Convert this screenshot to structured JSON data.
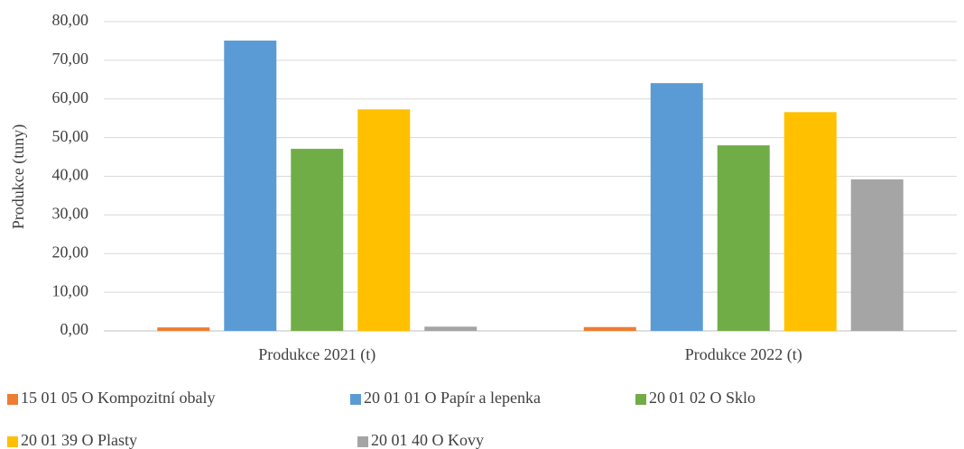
{
  "chart_data": {
    "type": "bar",
    "y_label": "Produkce (tuny)",
    "categories": [
      "Produkce 2021 (t)",
      "Produkce 2022 (t)"
    ],
    "series": [
      {
        "name": "15 01 05 O Kompozitní obaly",
        "color": "#ed7d31",
        "values": [
          0.9,
          1.0
        ]
      },
      {
        "name": "20 01 01 O Papír a lepenka",
        "color": "#5b9bd5",
        "values": [
          75.1,
          64.1
        ]
      },
      {
        "name": "20 01 02 O Sklo",
        "color": "#70ad47",
        "values": [
          47.1,
          48.0
        ]
      },
      {
        "name": "20 01 39 O Plasty",
        "color": "#ffc000",
        "values": [
          57.3,
          56.6
        ]
      },
      {
        "name": "20 01 40 O Kovy",
        "color": "#a5a5a5",
        "values": [
          1.1,
          39.2
        ]
      }
    ],
    "ylim": [
      0,
      80
    ],
    "yticks": [
      {
        "value": 0,
        "label": "0,00"
      },
      {
        "value": 10,
        "label": "10,00"
      },
      {
        "value": 20,
        "label": "20,00"
      },
      {
        "value": 30,
        "label": "30,00"
      },
      {
        "value": 40,
        "label": "40,00"
      },
      {
        "value": 50,
        "label": "50,00"
      },
      {
        "value": 60,
        "label": "60,00"
      },
      {
        "value": 70,
        "label": "70,00"
      },
      {
        "value": 80,
        "label": "80,00"
      }
    ],
    "grid": true,
    "legend": "bottom"
  }
}
